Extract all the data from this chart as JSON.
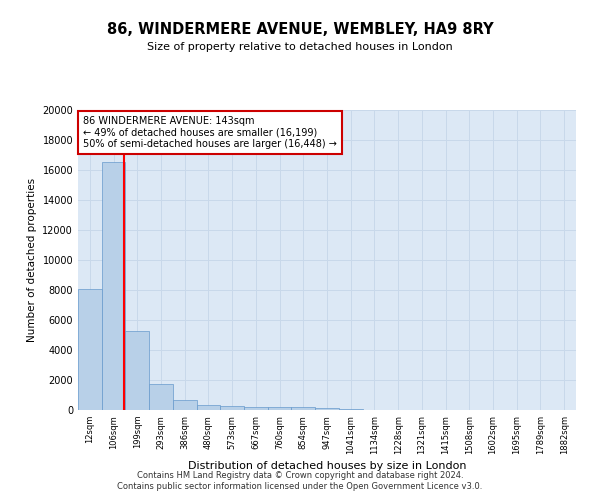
{
  "title": "86, WINDERMERE AVENUE, WEMBLEY, HA9 8RY",
  "subtitle": "Size of property relative to detached houses in London",
  "xlabel": "Distribution of detached houses by size in London",
  "ylabel": "Number of detached properties",
  "bar_labels": [
    "12sqm",
    "106sqm",
    "199sqm",
    "293sqm",
    "386sqm",
    "480sqm",
    "573sqm",
    "667sqm",
    "760sqm",
    "854sqm",
    "947sqm",
    "1041sqm",
    "1134sqm",
    "1228sqm",
    "1321sqm",
    "1415sqm",
    "1508sqm",
    "1602sqm",
    "1695sqm",
    "1789sqm",
    "1882sqm"
  ],
  "bar_values": [
    8100,
    16500,
    5300,
    1750,
    650,
    350,
    275,
    200,
    175,
    175,
    125,
    50,
    30,
    15,
    10,
    8,
    5,
    4,
    3,
    2,
    1
  ],
  "bar_color": "#b8d0e8",
  "bar_edge_color": "#6699cc",
  "ylim": [
    0,
    20000
  ],
  "yticks": [
    0,
    2000,
    4000,
    6000,
    8000,
    10000,
    12000,
    14000,
    16000,
    18000,
    20000
  ],
  "red_line_x": 1.44,
  "annotation_text": "86 WINDERMERE AVENUE: 143sqm\n← 49% of detached houses are smaller (16,199)\n50% of semi-detached houses are larger (16,448) →",
  "annotation_box_color": "#ffffff",
  "annotation_box_edge": "#cc0000",
  "footer1": "Contains HM Land Registry data © Crown copyright and database right 2024.",
  "footer2": "Contains public sector information licensed under the Open Government Licence v3.0.",
  "grid_color": "#c8d8ea",
  "bg_color": "#dce8f5"
}
